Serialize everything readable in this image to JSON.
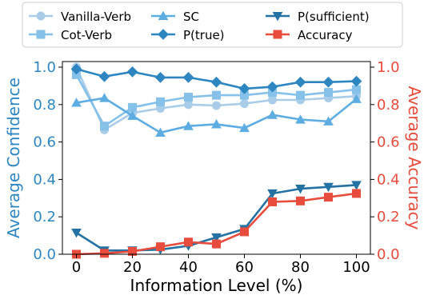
{
  "chart_data": {
    "type": "line",
    "xlabel": "Information Level (%)",
    "ylabel": "Average Confidence",
    "ylabel_right": "Average Accuracy",
    "x": [
      0,
      10,
      20,
      30,
      40,
      50,
      60,
      70,
      80,
      90,
      100
    ],
    "xticks": [
      "0",
      "20",
      "40",
      "60",
      "80",
      "100"
    ],
    "yticks_left": [
      "0.0",
      "0.2",
      "0.4",
      "0.6",
      "0.8",
      "1.0"
    ],
    "yticks_right": [
      "0.0",
      "0.2",
      "0.4",
      "0.6",
      "0.8",
      "1.0"
    ],
    "xlim": [
      -5,
      105
    ],
    "ylim": [
      0,
      1.03
    ],
    "ylim_right": [
      0,
      1.03
    ],
    "grid": false,
    "legend_position": "top, outside, 3 columns",
    "left_axis_color": "#2e86c1",
    "right_axis_color": "#e74c3c",
    "series": [
      {
        "name": "Vanilla-Verb",
        "axis": "left",
        "marker": "circle",
        "color": "#a9cde9",
        "x": [
          0,
          10,
          20,
          30,
          40,
          50,
          60,
          70,
          80,
          90,
          100
        ],
        "values": [
          1.0,
          0.665,
          0.755,
          0.78,
          0.8,
          0.795,
          0.805,
          0.825,
          0.825,
          0.835,
          0.845
        ]
      },
      {
        "name": "Cot-Verb",
        "axis": "left",
        "marker": "square",
        "color": "#85c1e9",
        "x": [
          0,
          10,
          20,
          30,
          40,
          50,
          60,
          70,
          80,
          90,
          100
        ],
        "values": [
          0.96,
          0.685,
          0.785,
          0.815,
          0.84,
          0.85,
          0.85,
          0.865,
          0.85,
          0.865,
          0.88
        ]
      },
      {
        "name": "SC",
        "axis": "left",
        "marker": "triangle-up",
        "color": "#5dade2",
        "x": [
          0,
          10,
          20,
          30,
          40,
          50,
          60,
          70,
          80,
          90,
          100
        ],
        "values": [
          0.81,
          0.835,
          0.74,
          0.65,
          0.685,
          0.695,
          0.675,
          0.745,
          0.72,
          0.71,
          0.83
        ]
      },
      {
        "name": "P(true)",
        "axis": "left",
        "marker": "diamond",
        "color": "#2e86c1",
        "x": [
          0,
          10,
          20,
          30,
          40,
          50,
          60,
          70,
          80,
          90,
          100
        ],
        "values": [
          0.99,
          0.95,
          0.975,
          0.945,
          0.945,
          0.92,
          0.885,
          0.895,
          0.92,
          0.92,
          0.925
        ]
      },
      {
        "name": "P(sufficient)",
        "axis": "left",
        "marker": "triangle-down",
        "color": "#2471a3",
        "x": [
          0,
          10,
          20,
          30,
          40,
          50,
          60,
          70,
          80,
          90,
          100
        ],
        "values": [
          0.115,
          0.02,
          0.02,
          0.025,
          0.045,
          0.09,
          0.135,
          0.325,
          0.35,
          0.36,
          0.37
        ]
      },
      {
        "name": "Accuracy",
        "axis": "right",
        "marker": "square",
        "color": "#e74c3c",
        "x": [
          0,
          10,
          20,
          30,
          40,
          50,
          60,
          70,
          80,
          90,
          100
        ],
        "values": [
          0.0,
          0.005,
          0.015,
          0.04,
          0.065,
          0.055,
          0.12,
          0.28,
          0.285,
          0.305,
          0.325
        ]
      }
    ]
  }
}
